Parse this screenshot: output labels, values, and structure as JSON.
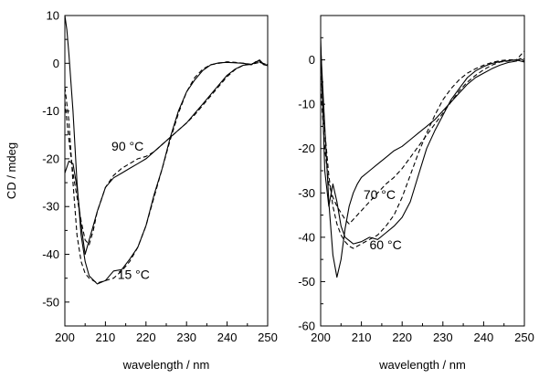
{
  "chart_data": [
    {
      "type": "line",
      "panel": "left",
      "xlabel": "wavelength / nm",
      "ylabel": "CD / mdeg",
      "xlim": [
        200,
        250
      ],
      "ylim": [
        -55,
        10
      ],
      "xticks": [
        200,
        210,
        220,
        230,
        240,
        250
      ],
      "yticks": [
        10,
        0,
        -10,
        -20,
        -30,
        -40,
        -50
      ],
      "grid": false,
      "annotations": [
        {
          "text": "90 °C",
          "x": 211.5,
          "y": -18.3
        },
        {
          "text": "15 °C",
          "x": 213,
          "y": -45.2
        }
      ],
      "series": [
        {
          "style": "solid",
          "x": [
            200,
            200.5,
            201,
            202,
            203,
            204,
            205,
            206,
            208,
            210,
            212,
            214,
            216,
            218,
            220,
            222,
            224,
            226,
            228,
            230,
            232,
            234,
            236,
            238,
            240,
            242,
            244,
            246,
            247,
            248,
            249,
            250
          ],
          "y": [
            10,
            7,
            2,
            -10,
            -25,
            -36,
            -41.5,
            -44.5,
            -46.2,
            -45.5,
            -43.5,
            -43.2,
            -41,
            -38.5,
            -34,
            -27.5,
            -22,
            -15.5,
            -10,
            -6,
            -3.5,
            -1.5,
            -0.3,
            0.1,
            0.2,
            0.1,
            0,
            -0.3,
            0.3,
            0.5,
            -0.3,
            -0.5
          ]
        },
        {
          "style": "dashed",
          "x": [
            200,
            201,
            202,
            203,
            204,
            205,
            206,
            208,
            210,
            212,
            214,
            216,
            218,
            220,
            222,
            224,
            226,
            228,
            230,
            232,
            234,
            236,
            238,
            240,
            242,
            244,
            246,
            248,
            250
          ],
          "y": [
            -5,
            -12,
            -25,
            -36,
            -41.5,
            -44,
            -45,
            -46,
            -45.5,
            -45,
            -43.5,
            -41.5,
            -38.5,
            -34,
            -28,
            -22,
            -16,
            -10.5,
            -6,
            -3,
            -1.2,
            -0.3,
            0,
            0.3,
            0.2,
            0,
            -0.2,
            0.2,
            -0.3
          ]
        },
        {
          "style": "solid",
          "x": [
            200,
            201,
            202,
            203,
            204,
            205,
            206,
            207,
            208,
            209,
            210,
            212,
            214,
            216,
            218,
            220,
            222,
            224,
            226,
            228,
            230,
            232,
            234,
            236,
            238,
            240,
            242,
            244,
            246,
            247,
            248,
            249,
            250
          ],
          "y": [
            -23,
            -20.5,
            -21,
            -26,
            -34,
            -40,
            -37,
            -34,
            -31,
            -28.5,
            -26,
            -24,
            -23,
            -22,
            -21,
            -20,
            -18.5,
            -17,
            -15.5,
            -14,
            -12.5,
            -10.5,
            -8.5,
            -6.5,
            -4.5,
            -2.5,
            -1.2,
            -0.4,
            -0.2,
            0.2,
            0.7,
            -0.2,
            -0.5
          ]
        },
        {
          "style": "dashed",
          "x": [
            200,
            201,
            202,
            203,
            204,
            205,
            206,
            207,
            208,
            209,
            210,
            212,
            214,
            216,
            218,
            220,
            222,
            224,
            226,
            228,
            230,
            232,
            234,
            236,
            238,
            240,
            242,
            244,
            246,
            248,
            250
          ],
          "y": [
            -8,
            -16,
            -23,
            -28,
            -33,
            -37,
            -38,
            -35,
            -31,
            -28.5,
            -26,
            -23.5,
            -22,
            -21,
            -20,
            -19.5,
            -18.5,
            -17,
            -15.5,
            -14,
            -12.5,
            -10.8,
            -8.8,
            -6.8,
            -4.8,
            -2.8,
            -1.3,
            -0.4,
            -0.1,
            0.2,
            -0.3
          ]
        }
      ]
    },
    {
      "type": "line",
      "panel": "right",
      "xlabel": "wavelength / nm",
      "ylabel": "",
      "xlim": [
        200,
        250
      ],
      "ylim": [
        -60,
        10
      ],
      "xticks": [
        200,
        210,
        220,
        230,
        240,
        250
      ],
      "yticks": [
        0,
        -10,
        -20,
        -30,
        -40,
        -50,
        -60
      ],
      "grid": false,
      "annotations": [
        {
          "text": "70 °C",
          "x": 210.5,
          "y": -31.4
        },
        {
          "text": "60 °C",
          "x": 212,
          "y": -42.7
        }
      ],
      "series": [
        {
          "style": "solid",
          "x": [
            200,
            201,
            202,
            203,
            204,
            205,
            206,
            207,
            208,
            209,
            210,
            212,
            214,
            216,
            218,
            220,
            222,
            224,
            226,
            228,
            230,
            232,
            234,
            236,
            238,
            240,
            242,
            244,
            246,
            248,
            249,
            250
          ],
          "y": [
            3,
            -15,
            -32,
            -44,
            -49,
            -45,
            -38,
            -33,
            -30,
            -28,
            -26.5,
            -25,
            -23.5,
            -22,
            -20.5,
            -19.5,
            -18,
            -16.5,
            -15,
            -13.5,
            -11.5,
            -9.5,
            -7.5,
            -5.5,
            -4,
            -3,
            -2,
            -1.2,
            -0.6,
            -0.3,
            0.3,
            -0.3
          ]
        },
        {
          "style": "solid",
          "x": [
            200,
            200.5,
            201,
            202,
            203,
            204,
            205,
            206,
            208,
            210,
            212,
            214,
            216,
            218,
            220,
            222,
            224,
            226,
            228,
            230,
            232,
            234,
            236,
            238,
            240,
            242,
            244,
            246,
            248,
            250
          ],
          "y": [
            5,
            -10,
            -25,
            -33,
            -28,
            -32,
            -37.5,
            -40,
            -41.5,
            -41,
            -40,
            -40.5,
            -39,
            -37.5,
            -35.5,
            -32,
            -26,
            -20,
            -16,
            -12.5,
            -9,
            -6.5,
            -4,
            -2.5,
            -1.5,
            -0.8,
            -0.4,
            -0.2,
            0,
            -0.5
          ]
        },
        {
          "style": "dashed",
          "x": [
            200,
            201,
            202,
            203,
            204,
            205,
            206,
            207,
            208,
            209,
            210,
            212,
            214,
            216,
            218,
            220,
            222,
            224,
            226,
            228,
            230,
            232,
            234,
            236,
            238,
            240,
            242,
            244,
            246,
            248,
            250
          ],
          "y": [
            -6,
            -20,
            -28,
            -31,
            -33,
            -34.5,
            -36,
            -37,
            -36,
            -35,
            -34,
            -32,
            -30,
            -28,
            -26.5,
            -24.5,
            -22,
            -19.5,
            -17,
            -14.5,
            -12,
            -9.5,
            -7,
            -5,
            -3.5,
            -2.2,
            -1.2,
            -0.5,
            -0.3,
            0,
            2
          ]
        },
        {
          "style": "dashed",
          "x": [
            200,
            201,
            202,
            203,
            204,
            205,
            206,
            207,
            208,
            209,
            210,
            212,
            214,
            216,
            218,
            220,
            222,
            224,
            226,
            228,
            230,
            232,
            234,
            236,
            238,
            240,
            242,
            244,
            246,
            248,
            250
          ],
          "y": [
            -2,
            -16,
            -26,
            -33,
            -37,
            -39.5,
            -41,
            -42,
            -42.5,
            -42,
            -41.5,
            -40.5,
            -39.5,
            -37.5,
            -35,
            -31,
            -26,
            -21,
            -16.5,
            -12.5,
            -9,
            -6.5,
            -4.5,
            -3,
            -2,
            -1.2,
            -0.6,
            -0.2,
            0,
            0,
            0.2
          ]
        }
      ]
    }
  ]
}
